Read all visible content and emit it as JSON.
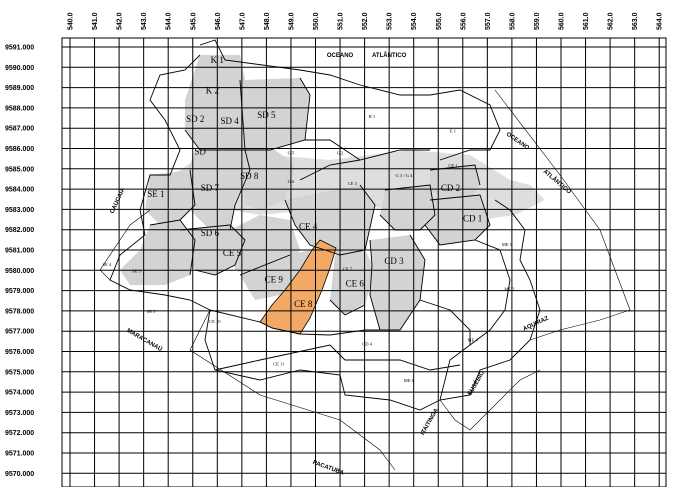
{
  "map": {
    "x_ticks": [
      "540.0",
      "541.0",
      "542.0",
      "543.0",
      "544.0",
      "545.0",
      "546.0",
      "547.0",
      "548.0",
      "549.0",
      "550.0",
      "551.0",
      "552.0",
      "553.0",
      "554.0",
      "555.0",
      "556.0",
      "557.0",
      "558.0",
      "559.0",
      "560.0",
      "561.0",
      "562.0",
      "563.0",
      "564.0"
    ],
    "y_ticks": [
      "9591.000",
      "9590.000",
      "9589.000",
      "9588.000",
      "9587.000",
      "9586.000",
      "9585.000",
      "9584.000",
      "9583.000",
      "9582.000",
      "9581.000",
      "9580.000",
      "9579.000",
      "9578.000",
      "9577.000",
      "9576.000",
      "9575.000",
      "9574.000",
      "9573.000",
      "9572.000",
      "9571.000",
      "9570.000",
      "9569.000"
    ],
    "places": [
      {
        "name": "OCEANO",
        "x": 551.0,
        "y": 9590.5
      },
      {
        "name": "ATLÂNTICO",
        "x": 553.0,
        "y": 9590.5
      },
      {
        "name": "OCEANO",
        "x": 558.2,
        "y": 9586.3
      },
      {
        "name": "ATLÂNTICO",
        "x": 559.8,
        "y": 9584.3
      },
      {
        "name": "CAUCAIA",
        "x": 542.0,
        "y": 9583.4
      },
      {
        "name": "MARACANAÚ",
        "x": 543.0,
        "y": 9576.5
      },
      {
        "name": "PACATUBA",
        "x": 550.5,
        "y": 9570.2
      },
      {
        "name": "ITAITINGA",
        "x": 554.7,
        "y": 9572.5
      },
      {
        "name": "EUSÉBIO",
        "x": 556.6,
        "y": 9574.4
      },
      {
        "name": "AQUIRAZ",
        "x": 559.0,
        "y": 9577.3
      }
    ],
    "zones": [
      {
        "label": "K 1",
        "x": 546.0,
        "y": 9590.2
      },
      {
        "label": "K 2",
        "x": 545.8,
        "y": 9588.7
      },
      {
        "label": "SD 2",
        "x": 545.1,
        "y": 9587.3
      },
      {
        "label": "SD 4",
        "x": 546.5,
        "y": 9587.2
      },
      {
        "label": "SD 5",
        "x": 548.0,
        "y": 9587.5
      },
      {
        "label": "SD",
        "x": 545.3,
        "y": 9585.7
      },
      {
        "label": "SD 7",
        "x": 545.7,
        "y": 9583.9
      },
      {
        "label": "SD 8",
        "x": 547.3,
        "y": 9584.5
      },
      {
        "label": "SE 1",
        "x": 543.5,
        "y": 9583.6
      },
      {
        "label": "SD 6",
        "x": 545.7,
        "y": 9581.7
      },
      {
        "label": "CE 5",
        "x": 546.6,
        "y": 9580.7
      },
      {
        "label": "CE 4",
        "x": 549.7,
        "y": 9582.0
      },
      {
        "label": "CE 9",
        "x": 548.3,
        "y": 9579.4
      },
      {
        "label": "CE 8",
        "x": 549.5,
        "y": 9578.2
      },
      {
        "label": "CE 6",
        "x": 551.6,
        "y": 9579.2
      },
      {
        "label": "CD 3",
        "x": 553.2,
        "y": 9580.3
      },
      {
        "label": "CD 2",
        "x": 555.5,
        "y": 9583.9
      },
      {
        "label": "CD 1",
        "x": 556.4,
        "y": 9582.4
      }
    ],
    "small_labels": [
      {
        "label": "G 5",
        "x": 549.0,
        "y": 9585.7
      },
      {
        "label": "G 2",
        "x": 551.0,
        "y": 9585.7
      },
      {
        "label": "G 6",
        "x": 549.0,
        "y": 9584.3
      },
      {
        "label": "G 3 / G 4",
        "x": 553.6,
        "y": 9584.6
      },
      {
        "label": "CE 3",
        "x": 551.5,
        "y": 9584.2
      },
      {
        "label": "CE 1",
        "x": 555.6,
        "y": 9585.1
      },
      {
        "label": "E 1",
        "x": 555.6,
        "y": 9586.8
      },
      {
        "label": "B 1",
        "x": 552.3,
        "y": 9587.5
      },
      {
        "label": "SE 3",
        "x": 542.7,
        "y": 9579.9
      },
      {
        "label": "SE 4",
        "x": 541.5,
        "y": 9580.2
      },
      {
        "label": "ME 1",
        "x": 557.8,
        "y": 9581.2
      },
      {
        "label": "ME 2",
        "x": 557.9,
        "y": 9579.0
      },
      {
        "label": "ME 4",
        "x": 556.4,
        "y": 9576.5
      },
      {
        "label": "ME 6",
        "x": 553.8,
        "y": 9574.5
      },
      {
        "label": "CD 4",
        "x": 552.1,
        "y": 9576.3
      },
      {
        "label": "CE 7",
        "x": 551.3,
        "y": 9580.0
      },
      {
        "label": "CE 10",
        "x": 545.9,
        "y": 9577.4
      },
      {
        "label": "CE 11",
        "x": 548.5,
        "y": 9575.3
      },
      {
        "label": "SE 5",
        "x": 543.3,
        "y": 9577.9
      }
    ],
    "highlight_zone": "CE 8",
    "colors": {
      "zone_fill": "#d3d3d3",
      "highlight_fill": "#f3a966",
      "arrow_fill": "#d9d9d9",
      "grid": "#000000"
    }
  }
}
